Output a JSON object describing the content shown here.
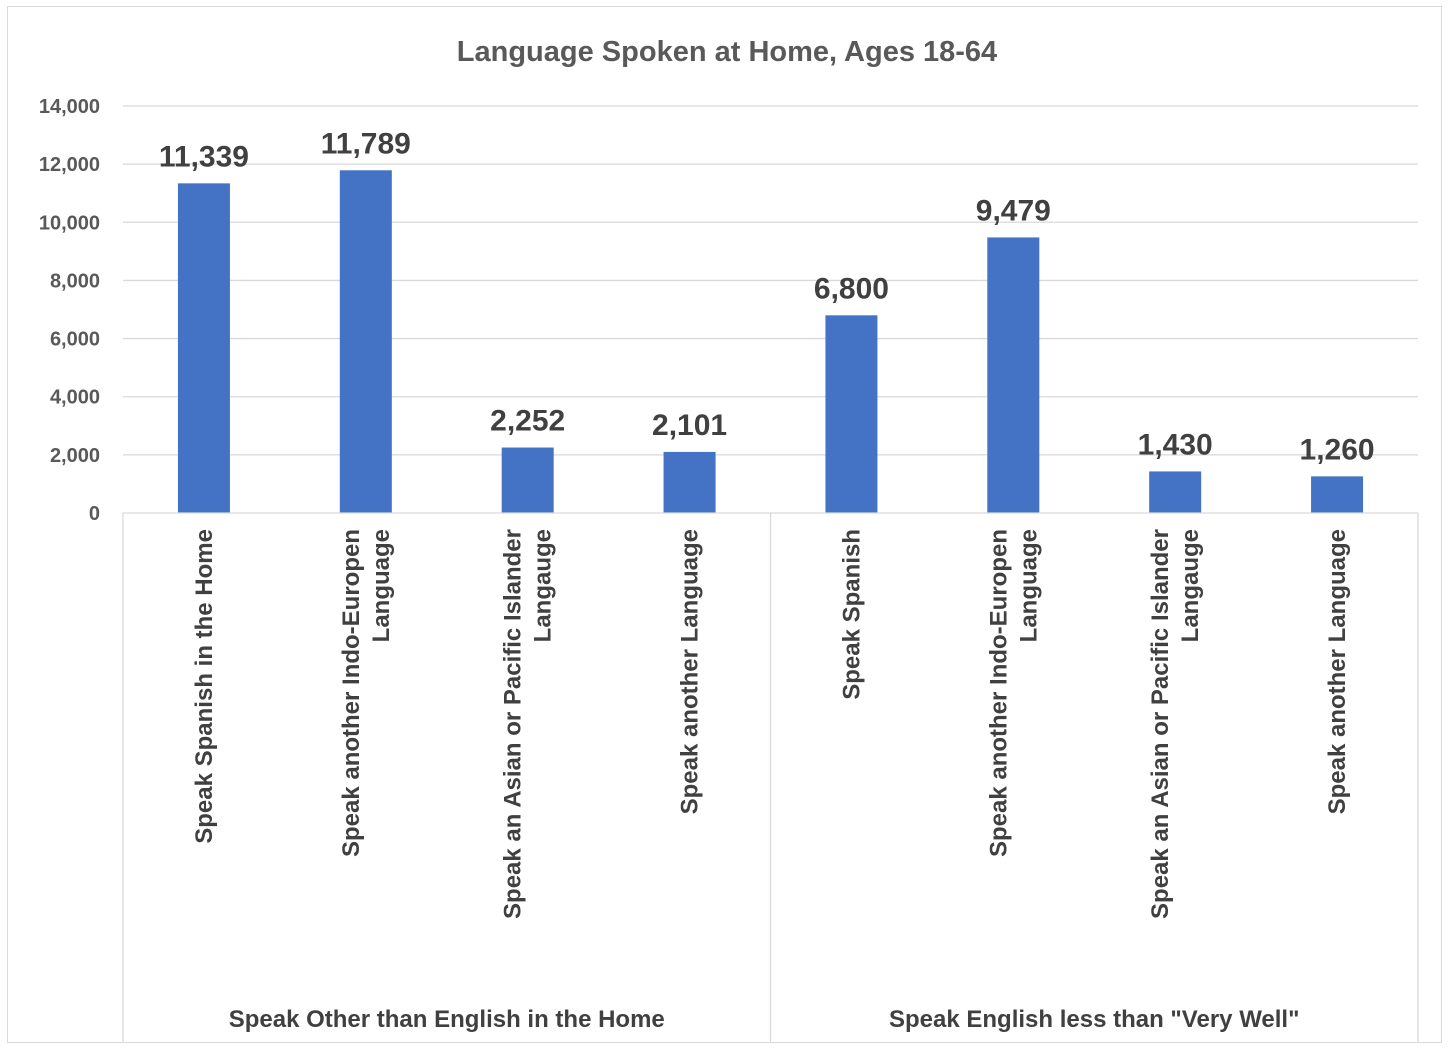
{
  "chart_data": {
    "type": "bar",
    "title": "Language Spoken at Home, Ages 18-64",
    "xlabel": "",
    "ylabel": "",
    "ylim": [
      0,
      14000
    ],
    "yticks": [
      0,
      2000,
      4000,
      6000,
      8000,
      10000,
      12000,
      14000
    ],
    "ytick_labels": [
      "0",
      "2,000",
      "4,000",
      "6,000",
      "8,000",
      "10,000",
      "12,000",
      "14,000"
    ],
    "grid": true,
    "legend": "none",
    "bar_color": "#4472C4",
    "groups": [
      {
        "label": "Speak Other than English in the Home",
        "categories": [
          [
            "Speak Spanish in the Home"
          ],
          [
            "Speak another Indo-Europen",
            "Language"
          ],
          [
            "Speak an Asian or Pacific Islander",
            "Langauge"
          ],
          [
            "Speak another Language"
          ]
        ],
        "values": [
          11339,
          11789,
          2252,
          2101
        ],
        "value_labels": [
          "11,339",
          "11,789",
          "2,252",
          "2,101"
        ]
      },
      {
        "label": "Speak English less than \"Very Well\"",
        "categories": [
          [
            "Speak Spanish"
          ],
          [
            "Speak another Indo-Europen",
            "Language"
          ],
          [
            "Speak an Asian or Pacific Islander",
            "Langauge"
          ],
          [
            "Speak another Language"
          ]
        ],
        "values": [
          6800,
          9479,
          1430,
          1260
        ],
        "value_labels": [
          "6,800",
          "9,479",
          "1,430",
          "1,260"
        ]
      }
    ]
  }
}
